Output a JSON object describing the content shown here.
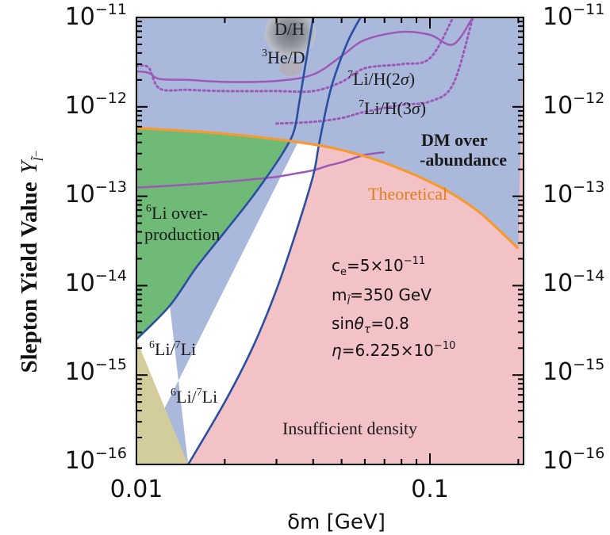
{
  "chart_data": {
    "type": "area",
    "title": "",
    "xlabel": "δm [GeV]",
    "ylabel": "Slepton Yield Value",
    "ylabel_symbol": "Y",
    "ylabel_subscript": "l̃⁻",
    "x_scale": "log",
    "y_scale": "log",
    "xlim": [
      0.01,
      0.2
    ],
    "ylim": [
      1e-16,
      1e-11
    ],
    "x_ticks": [
      {
        "value": 0.01,
        "label": "0.01"
      },
      {
        "value": 0.1,
        "label": "0.1"
      }
    ],
    "y_ticks": [
      {
        "value": 1e-11,
        "base": "10",
        "exp": "−11"
      },
      {
        "value": 1e-12,
        "base": "10",
        "exp": "−12"
      },
      {
        "value": 1e-13,
        "base": "10",
        "exp": "−13"
      },
      {
        "value": 1e-14,
        "base": "10",
        "exp": "−14"
      },
      {
        "value": 1e-15,
        "base": "10",
        "exp": "−15"
      },
      {
        "value": 1e-16,
        "base": "10",
        "exp": "−16"
      }
    ],
    "regions": [
      {
        "name": "DM over-abundance",
        "color": "#aab8dc"
      },
      {
        "name": "6Li over-production",
        "color": "#6fba76"
      },
      {
        "name": "6Li/7Li",
        "color": "#d3cd9c"
      },
      {
        "name": "Insufficient density",
        "color": "#f3c2c7"
      },
      {
        "name": "D/H, 3He/D",
        "color": "#9a9a9a"
      }
    ],
    "curves": {
      "theoretical": {
        "color": "#f79a2e",
        "x": [
          0.01,
          0.02,
          0.04,
          0.06,
          0.08,
          0.1,
          0.12,
          0.15,
          0.2
        ],
        "y": [
          5.8e-13,
          5e-13,
          3.8e-13,
          2.8e-13,
          2e-13,
          1.45e-13,
          1.05e-13,
          6.3e-14,
          2.6e-14
        ]
      },
      "li6_overproduction_boundary": {
        "color": "#2a4fa0",
        "x": [
          0.01,
          0.013,
          0.016,
          0.02,
          0.024,
          0.028,
          0.032,
          0.0345,
          0.036,
          0.04
        ],
        "y": [
          2.5e-15,
          6e-15,
          1.6e-14,
          4e-14,
          8.5e-14,
          1.7e-13,
          3.3e-13,
          5.5e-13,
          1.2e-12,
          1e-11
        ]
      },
      "li6_li7_boundary": {
        "color": "#2a4fa0",
        "x": [
          0.015,
          0.02,
          0.025,
          0.03,
          0.035,
          0.04,
          0.042,
          0.046,
          0.052,
          0.058
        ],
        "y": [
          1e-16,
          5e-16,
          2.1e-15,
          9e-15,
          4e-14,
          1.7e-13,
          4e-13,
          1.6e-12,
          5e-12,
          1e-11
        ]
      },
      "li7_h_2sigma": {
        "color": "#9c59b6",
        "style": "solid",
        "x": [
          0.01,
          0.011,
          0.012,
          0.015,
          0.02,
          0.03,
          0.04,
          0.05,
          0.06,
          0.08,
          0.1,
          0.12,
          0.14
        ],
        "y": [
          2.5e-12,
          2.4e-12,
          2.05e-12,
          2e-12,
          1.9e-12,
          1.95e-12,
          2.3e-12,
          3.7e-12,
          5.6e-12,
          6.9e-12,
          6.4e-12,
          5e-12,
          1e-11
        ]
      },
      "li7_h_3sigma_upper": {
        "color": "#9c59b6",
        "style": "dotted",
        "x": [
          0.01,
          0.011,
          0.012,
          0.015,
          0.02,
          0.03,
          0.04,
          0.05,
          0.06,
          0.08,
          0.1,
          0.12
        ],
        "y": [
          2.85e-12,
          2.75e-12,
          1.6e-12,
          1.55e-12,
          1.5e-12,
          1.5e-12,
          1.5e-12,
          1.9e-12,
          2.7e-12,
          3e-12,
          3.5e-12,
          1e-11
        ]
      },
      "li7_h_3sigma_lower": {
        "color": "#9c59b6",
        "style": "dotted",
        "x": [
          0.03,
          0.04,
          0.05,
          0.06,
          0.08,
          0.1,
          0.12,
          0.14
        ],
        "y": [
          6.5e-13,
          6.8e-13,
          7.5e-13,
          8.8e-13,
          1.05e-12,
          1.15e-12,
          1.8e-12,
          1e-11
        ]
      },
      "li7_h_lower_solid": {
        "color": "#9c59b6",
        "style": "solid",
        "x": [
          0.01,
          0.015,
          0.02,
          0.025,
          0.03,
          0.035,
          0.04,
          0.045,
          0.05,
          0.06,
          0.07
        ],
        "y": [
          1.25e-13,
          1.35e-13,
          1.45e-13,
          1.55e-13,
          1.65e-13,
          1.8e-13,
          1.95e-13,
          2.2e-13,
          2.4e-13,
          2.9e-13,
          3.1e-13
        ]
      }
    }
  },
  "labels": {
    "dh": "D/H",
    "he3_sup": "3",
    "he3_rest": "He/D",
    "li7_2s_sup": "7",
    "li7_2s_rest": "Li/H(2",
    "sigma": "σ",
    "close_paren": ")",
    "li7_3s_sup": "7",
    "li7_3s_rest": "Li/H(3",
    "dm_line1": "DM over",
    "dm_line2": "-abundance",
    "theoretical": "Theoretical",
    "li6_sup": "6",
    "li6_rest": "Li over-",
    "li6_line2": "production",
    "ratio_sup1": "6",
    "ratio_mid": "Li/",
    "ratio_sup2": "7",
    "ratio_end": "Li",
    "insufficient": "Insufficient density"
  },
  "params": {
    "ce_prefix": "c",
    "ce_sub": "e",
    "ce_value": "=5×10",
    "ce_exp": "−11",
    "m_prefix": "m",
    "m_sub": "l̃",
    "m_value": "=350 GeV",
    "sin_text": "sin",
    "theta": "θ",
    "tau": "τ",
    "sin_value": "=0.8",
    "eta": "η",
    "eta_value": "=6.225×10",
    "eta_exp": "−10"
  }
}
